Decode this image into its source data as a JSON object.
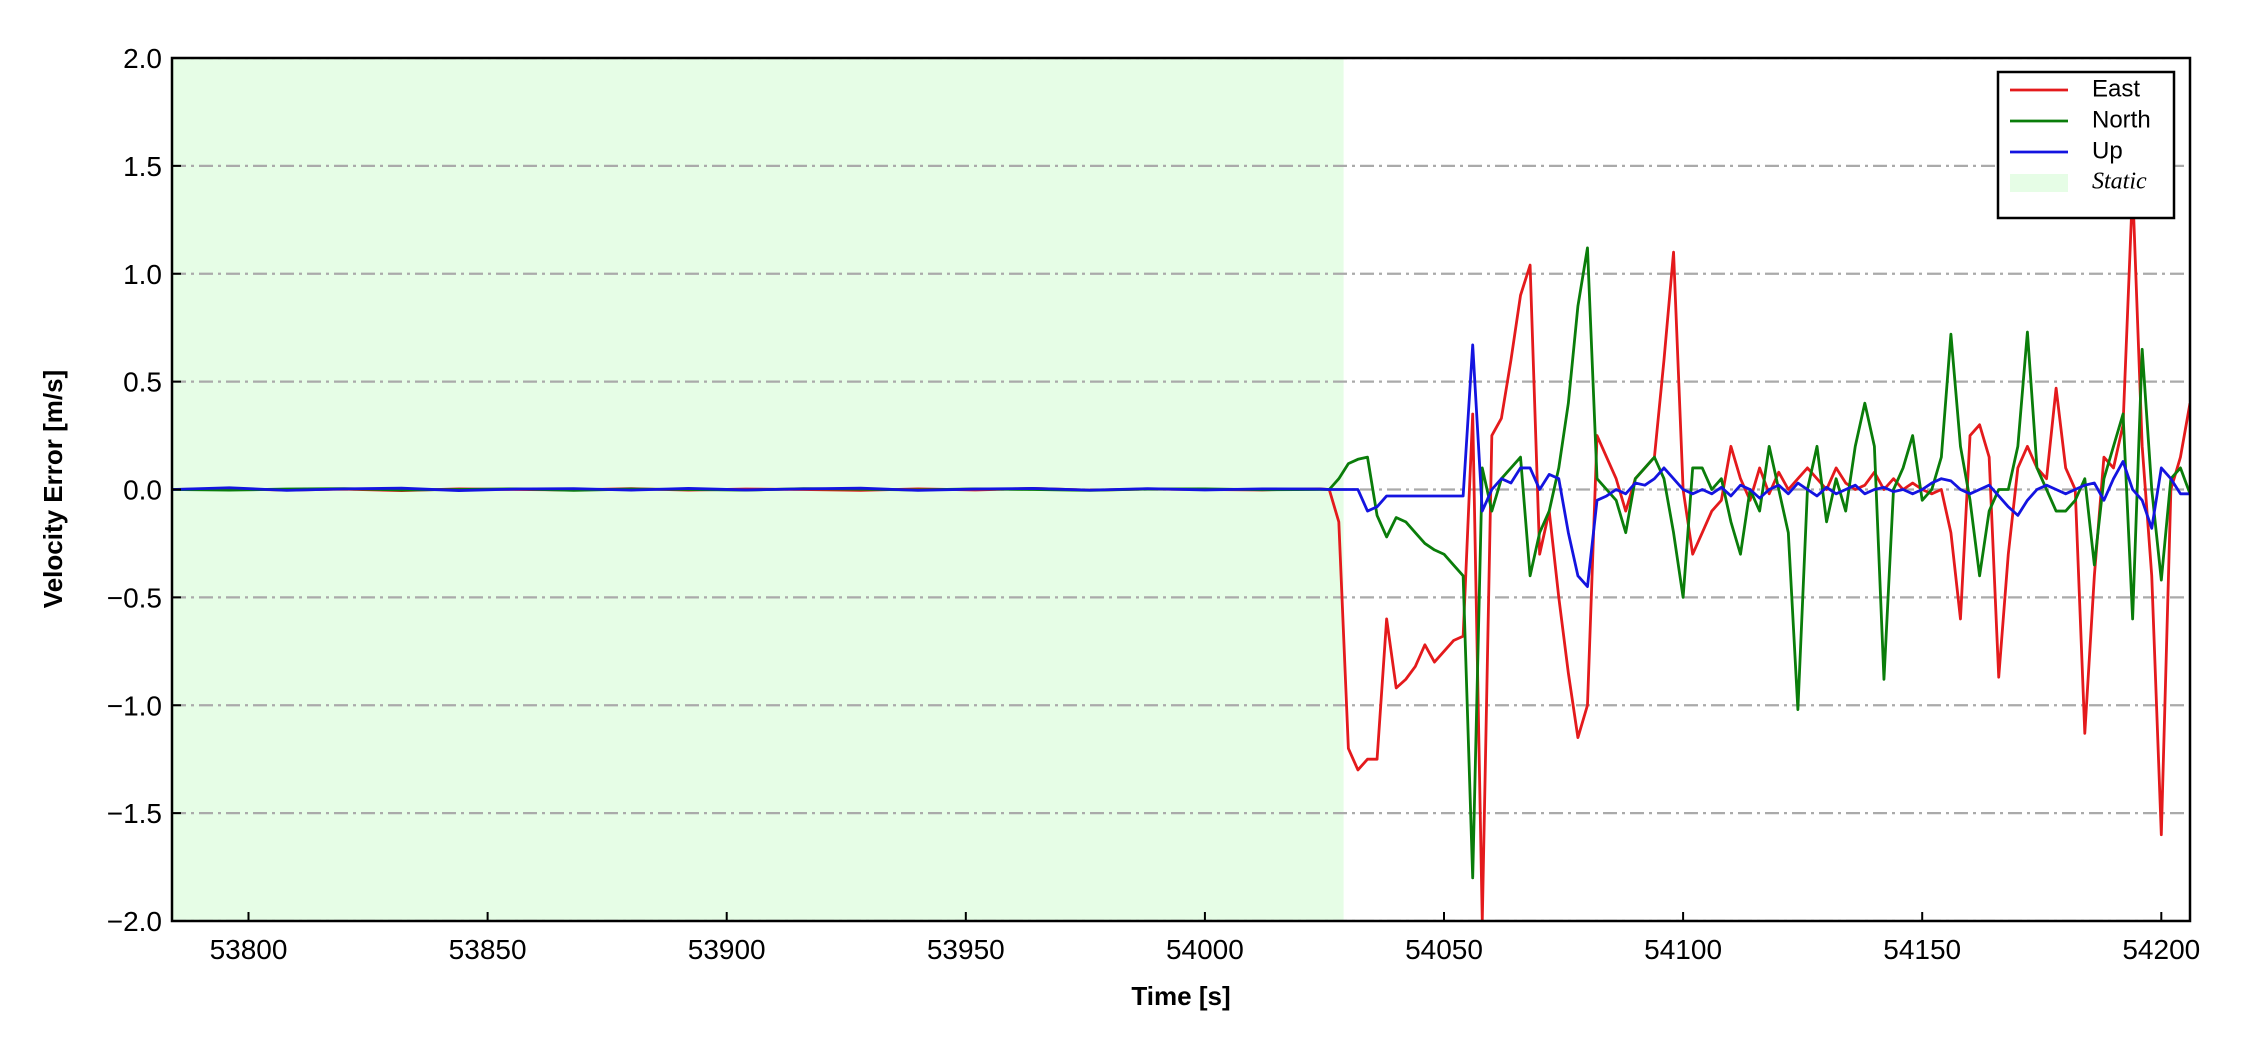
{
  "chart_data": {
    "type": "line",
    "xlabel": "Time [s]",
    "ylabel": "Velocity Error [m/s]",
    "xlim": [
      53784,
      54206
    ],
    "ylim": [
      -2.0,
      2.0
    ],
    "xticks": [
      53800,
      53850,
      53900,
      53950,
      54000,
      54050,
      54100,
      54150,
      54200
    ],
    "yticks": [
      {
        "value": -2.0,
        "label": "−2.0"
      },
      {
        "value": -1.5,
        "label": "−1.5"
      },
      {
        "value": -1.0,
        "label": "−1.0"
      },
      {
        "value": -0.5,
        "label": "−0.5"
      },
      {
        "value": 0,
        "label": "0.0"
      },
      0.5,
      {
        "value": 1.0,
        "label": "1.0"
      },
      1.5,
      {
        "value": 2.0,
        "label": "2.0"
      }
    ],
    "grid": true,
    "legend": "upper right",
    "shade": {
      "xmin": 53784,
      "xmax": 54029,
      "label": "Static",
      "color": "#e6fde6"
    },
    "x": [
      53784,
      53796,
      53808,
      53820,
      53832,
      53844,
      53856,
      53868,
      53880,
      53892,
      53904,
      53916,
      53928,
      53940,
      53952,
      53964,
      53976,
      53988,
      54000,
      54012,
      54024,
      54026,
      54028,
      54030,
      54032,
      54034,
      54036,
      54038,
      54040,
      54042,
      54044,
      54046,
      54048,
      54050,
      54052,
      54054,
      54056,
      54058,
      54060,
      54062,
      54064,
      54066,
      54068,
      54070,
      54072,
      54074,
      54076,
      54078,
      54080,
      54082,
      54084,
      54086,
      54088,
      54090,
      54092,
      54094,
      54096,
      54098,
      54100,
      54102,
      54104,
      54106,
      54108,
      54110,
      54112,
      54114,
      54116,
      54118,
      54120,
      54122,
      54124,
      54126,
      54128,
      54130,
      54132,
      54134,
      54136,
      54138,
      54140,
      54142,
      54144,
      54146,
      54148,
      54150,
      54152,
      54154,
      54156,
      54158,
      54160,
      54162,
      54164,
      54166,
      54168,
      54170,
      54172,
      54174,
      54176,
      54178,
      54180,
      54182,
      54184,
      54186,
      54188,
      54190,
      54192,
      54194,
      54196,
      54198,
      54200,
      54202,
      54204,
      54206
    ],
    "series": [
      {
        "name": "East",
        "color": "#e41a1c",
        "values": [
          0,
          0.004,
          -0.003,
          0.002,
          -0.005,
          0.003,
          0,
          -0.002,
          0.004,
          -0.003,
          0.002,
          0,
          -0.004,
          0.003,
          -0.002,
          0.005,
          -0.003,
          0.002,
          0,
          -0.002,
          0.003,
          0.0,
          -0.15,
          -1.2,
          -1.3,
          -1.25,
          -1.25,
          -0.6,
          -0.92,
          -0.88,
          -0.82,
          -0.72,
          -0.8,
          -0.75,
          -0.7,
          -0.68,
          0.35,
          -2.0,
          0.25,
          0.33,
          0.6,
          0.9,
          1.04,
          -0.3,
          -0.1,
          -0.5,
          -0.85,
          -1.15,
          -1.0,
          0.25,
          0.15,
          0.05,
          -0.1,
          0.05,
          0.1,
          0.15,
          0.6,
          1.1,
          0.0,
          -0.3,
          -0.2,
          -0.1,
          -0.05,
          0.2,
          0.05,
          -0.05,
          0.1,
          -0.02,
          0.08,
          0.0,
          0.05,
          0.1,
          0.05,
          0.0,
          0.1,
          0.03,
          0.0,
          0.02,
          0.08,
          0.0,
          0.05,
          0.0,
          0.03,
          0.0,
          -0.02,
          0.0,
          -0.2,
          -0.6,
          0.25,
          0.3,
          0.15,
          -0.87,
          -0.3,
          0.1,
          0.2,
          0.1,
          0.05,
          0.47,
          0.1,
          0.0,
          -1.13,
          -0.4,
          0.15,
          0.1,
          0.3,
          1.4,
          0.2,
          -0.4,
          -1.6,
          0.0,
          0.15,
          0.4
        ]
      },
      {
        "name": "North",
        "color": "#0a7d0a",
        "values": [
          0,
          -0.003,
          0.002,
          0.004,
          -0.002,
          0,
          0.003,
          -0.004,
          0.002,
          0,
          -0.003,
          0.004,
          0.001,
          -0.002,
          0.003,
          0,
          -0.004,
          0.002,
          0.003,
          -0.001,
          0,
          0.0,
          0.05,
          0.12,
          0.14,
          0.15,
          -0.12,
          -0.22,
          -0.13,
          -0.15,
          -0.2,
          -0.25,
          -0.28,
          -0.3,
          -0.35,
          -0.4,
          -1.8,
          0.1,
          -0.1,
          0.05,
          0.1,
          0.15,
          -0.4,
          -0.2,
          -0.1,
          0.1,
          0.4,
          0.85,
          1.12,
          0.05,
          0.0,
          -0.05,
          -0.2,
          0.05,
          0.1,
          0.15,
          0.05,
          -0.2,
          -0.5,
          0.1,
          0.1,
          0.0,
          0.05,
          -0.15,
          -0.3,
          0.0,
          -0.1,
          0.2,
          0.0,
          -0.2,
          -1.02,
          0.0,
          0.2,
          -0.15,
          0.05,
          -0.1,
          0.2,
          0.4,
          0.2,
          -0.88,
          0.0,
          0.1,
          0.25,
          -0.05,
          0.0,
          0.15,
          0.72,
          0.2,
          -0.05,
          -0.4,
          -0.1,
          0.0,
          0.0,
          0.2,
          0.73,
          0.1,
          0.0,
          -0.1,
          -0.1,
          -0.05,
          0.05,
          -0.35,
          0.05,
          0.2,
          0.35,
          -0.6,
          0.65,
          0.0,
          -0.42,
          0.05,
          0.1,
          -0.02
        ]
      },
      {
        "name": "Up",
        "color": "#1414e0",
        "values": [
          0,
          0.008,
          -0.004,
          0.003,
          0.006,
          -0.005,
          0.002,
          0.004,
          -0.003,
          0.005,
          -0.002,
          0.003,
          0.006,
          -0.004,
          0.002,
          0.005,
          -0.003,
          0.004,
          -0.002,
          0.003,
          0.002,
          0.0,
          0.0,
          0.0,
          0.0,
          -0.1,
          -0.08,
          -0.03,
          -0.03,
          -0.03,
          -0.03,
          -0.03,
          -0.03,
          -0.03,
          -0.03,
          -0.03,
          0.67,
          -0.1,
          0.0,
          0.05,
          0.03,
          0.1,
          0.1,
          0.0,
          0.07,
          0.05,
          -0.2,
          -0.4,
          -0.45,
          -0.05,
          -0.03,
          0.0,
          -0.02,
          0.03,
          0.02,
          0.05,
          0.1,
          0.05,
          0.0,
          -0.02,
          0.0,
          -0.02,
          0.01,
          -0.03,
          0.02,
          0.0,
          -0.04,
          0.0,
          0.02,
          -0.02,
          0.03,
          0.0,
          -0.03,
          0.01,
          -0.02,
          0.0,
          0.02,
          -0.02,
          0.0,
          0.01,
          -0.01,
          0.0,
          -0.02,
          0.0,
          0.03,
          0.05,
          0.04,
          0.0,
          -0.02,
          0.0,
          0.02,
          -0.03,
          -0.08,
          -0.12,
          -0.05,
          0.0,
          0.02,
          0.0,
          -0.02,
          0.0,
          0.02,
          0.03,
          -0.05,
          0.05,
          0.13,
          0.0,
          -0.05,
          -0.18,
          0.1,
          0.05,
          -0.02,
          -0.02
        ]
      }
    ]
  }
}
